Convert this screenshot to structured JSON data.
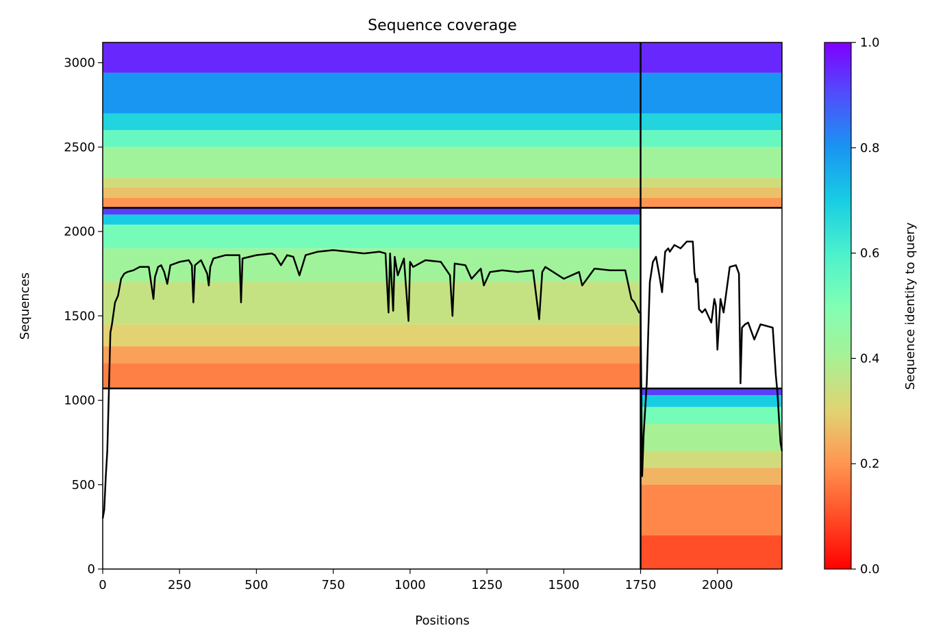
{
  "chart_data": {
    "type": "heatmap",
    "title": "Sequence coverage",
    "xlabel": "Positions",
    "ylabel": "Sequences",
    "xlim": [
      0,
      2210
    ],
    "ylim": [
      0,
      3120
    ],
    "x_ticks": [
      0,
      250,
      500,
      750,
      1000,
      1250,
      1500,
      1750,
      2000
    ],
    "y_ticks": [
      0,
      500,
      1000,
      1500,
      2000,
      2500,
      3000
    ],
    "colormap": "rainbow",
    "colorbar": {
      "label": "Sequence identity to query",
      "range": [
        0,
        1
      ],
      "ticks": [
        0.0,
        0.2,
        0.4,
        0.6,
        0.8,
        1.0
      ],
      "tick_labels": [
        "0.0",
        "0.2",
        "0.4",
        "0.6",
        "0.8",
        "1.0"
      ]
    },
    "chain_boundary_positions": [
      1750
    ],
    "block_boundary_sequences": [
      1070,
      2140
    ],
    "blocks": [
      {
        "name": "paired",
        "x_range": [
          0,
          2210
        ],
        "y_range": [
          2140,
          3120
        ],
        "identity_bands": [
          {
            "y": [
              2940,
              3120
            ],
            "identity": 0.95
          },
          {
            "y": [
              2700,
              2940
            ],
            "identity": 0.8
          },
          {
            "y": [
              2600,
              2700
            ],
            "identity": 0.68
          },
          {
            "y": [
              2500,
              2600
            ],
            "identity": 0.55
          },
          {
            "y": [
              2320,
              2500
            ],
            "identity": 0.42
          },
          {
            "y": [
              2260,
              2320
            ],
            "identity": 0.33
          },
          {
            "y": [
              2200,
              2260
            ],
            "identity": 0.27
          },
          {
            "y": [
              2140,
              2200
            ],
            "identity": 0.2
          }
        ]
      },
      {
        "name": "chain-A-unpaired",
        "x_range": [
          0,
          1750
        ],
        "y_range": [
          1070,
          2140
        ],
        "identity_bands": [
          {
            "y": [
              2100,
              2140
            ],
            "identity": 0.92
          },
          {
            "y": [
              2040,
              2100
            ],
            "identity": 0.7
          },
          {
            "y": [
              1900,
              2040
            ],
            "identity": 0.52
          },
          {
            "y": [
              1700,
              1900
            ],
            "identity": 0.42
          },
          {
            "y": [
              1450,
              1700
            ],
            "identity": 0.35
          },
          {
            "y": [
              1320,
              1450
            ],
            "identity": 0.3
          },
          {
            "y": [
              1220,
              1320
            ],
            "identity": 0.22
          },
          {
            "y": [
              1070,
              1220
            ],
            "identity": 0.17
          }
        ]
      },
      {
        "name": "chain-B-unpaired",
        "x_range": [
          1750,
          2210
        ],
        "y_range": [
          0,
          1070
        ],
        "identity_bands": [
          {
            "y": [
              1030,
              1070
            ],
            "identity": 0.92
          },
          {
            "y": [
              960,
              1030
            ],
            "identity": 0.7
          },
          {
            "y": [
              860,
              960
            ],
            "identity": 0.52
          },
          {
            "y": [
              700,
              860
            ],
            "identity": 0.4
          },
          {
            "y": [
              600,
              700
            ],
            "identity": 0.33
          },
          {
            "y": [
              500,
              600
            ],
            "identity": 0.25
          },
          {
            "y": [
              200,
              500
            ],
            "identity": 0.18
          },
          {
            "y": [
              0,
              200
            ],
            "identity": 0.1
          }
        ]
      }
    ],
    "coverage_line": {
      "x": [
        0,
        5,
        10,
        15,
        20,
        25,
        30,
        40,
        50,
        60,
        70,
        80,
        100,
        120,
        150,
        165,
        170,
        175,
        180,
        190,
        200,
        210,
        220,
        250,
        280,
        290,
        295,
        300,
        320,
        340,
        345,
        350,
        360,
        400,
        445,
        450,
        455,
        500,
        550,
        560,
        580,
        600,
        620,
        640,
        660,
        700,
        750,
        800,
        850,
        900,
        920,
        930,
        935,
        945,
        950,
        960,
        980,
        995,
        1000,
        1010,
        1050,
        1100,
        1130,
        1138,
        1145,
        1180,
        1200,
        1230,
        1240,
        1260,
        1300,
        1350,
        1400,
        1420,
        1430,
        1440,
        1500,
        1550,
        1560,
        1600,
        1650,
        1700,
        1720,
        1730,
        1735,
        1740,
        1745,
        1750,
        1755,
        1760,
        1770,
        1775,
        1780,
        1790,
        1800,
        1810,
        1820,
        1830,
        1840,
        1845,
        1860,
        1880,
        1900,
        1920,
        1925,
        1930,
        1935,
        1940,
        1950,
        1960,
        1980,
        1990,
        1995,
        2000,
        2010,
        2020,
        2040,
        2060,
        2070,
        2075,
        2080,
        2090,
        2100,
        2120,
        2140,
        2180,
        2190,
        2195,
        2200,
        2205,
        2210
      ],
      "y": [
        300,
        350,
        550,
        700,
        1050,
        1400,
        1450,
        1580,
        1620,
        1720,
        1750,
        1760,
        1770,
        1790,
        1790,
        1600,
        1730,
        1760,
        1790,
        1800,
        1760,
        1690,
        1800,
        1820,
        1830,
        1800,
        1580,
        1800,
        1830,
        1750,
        1680,
        1790,
        1840,
        1860,
        1860,
        1580,
        1840,
        1860,
        1870,
        1860,
        1800,
        1860,
        1850,
        1740,
        1860,
        1880,
        1890,
        1880,
        1870,
        1880,
        1870,
        1520,
        1870,
        1530,
        1850,
        1740,
        1840,
        1470,
        1820,
        1790,
        1830,
        1820,
        1740,
        1500,
        1810,
        1800,
        1720,
        1780,
        1680,
        1760,
        1770,
        1760,
        1770,
        1480,
        1760,
        1790,
        1720,
        1760,
        1680,
        1780,
        1770,
        1770,
        1600,
        1580,
        1560,
        1540,
        1520,
        1520,
        550,
        800,
        1100,
        1400,
        1700,
        1820,
        1850,
        1750,
        1640,
        1880,
        1900,
        1880,
        1920,
        1900,
        1940,
        1940,
        1760,
        1700,
        1720,
        1540,
        1520,
        1540,
        1460,
        1600,
        1560,
        1300,
        1600,
        1520,
        1790,
        1800,
        1750,
        1100,
        1430,
        1450,
        1460,
        1360,
        1450,
        1430,
        1150,
        1050,
        900,
        750,
        700
      ]
    }
  }
}
